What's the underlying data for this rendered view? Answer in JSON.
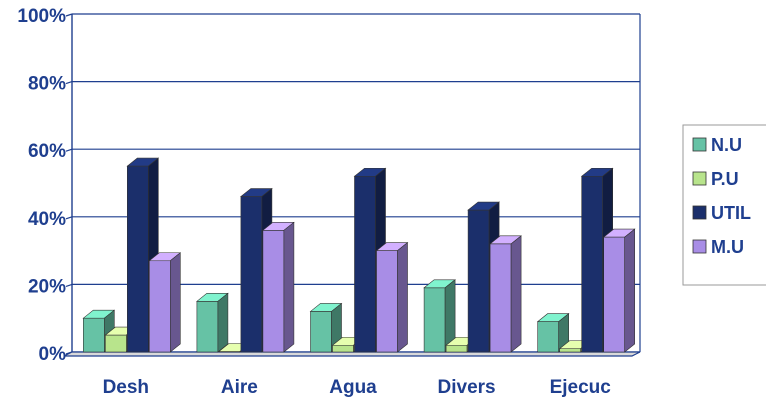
{
  "chart_data": {
    "type": "bar",
    "categories": [
      "Desh",
      "Aire",
      "Agua",
      "Divers",
      "Ejecuc"
    ],
    "series": [
      {
        "name": "N.U",
        "color": "#66c2a5",
        "values": [
          10,
          15,
          12,
          19,
          9
        ]
      },
      {
        "name": "P.U",
        "color": "#b8e48c",
        "values": [
          5,
          0,
          2,
          2,
          1
        ]
      },
      {
        "name": "UTIL",
        "color": "#1b2f6b",
        "values": [
          55,
          46,
          52,
          42,
          52
        ]
      },
      {
        "name": "M.U",
        "color": "#a88de6",
        "values": [
          27,
          36,
          30,
          32,
          34
        ]
      }
    ],
    "y_ticks": [
      "0%",
      "20%",
      "40%",
      "60%",
      "80%",
      "100%"
    ],
    "ylim": [
      0,
      100
    ],
    "grid": true,
    "legend_position": "right",
    "style": "3d-clustered-column"
  }
}
